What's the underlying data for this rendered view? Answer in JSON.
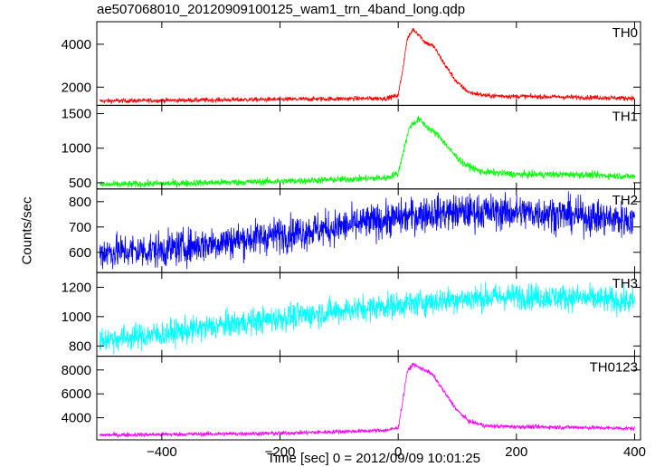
{
  "chart_data": {
    "type": "line",
    "title": "ae507068010_20120909100125_wam1_trn_4band_long.qdp",
    "ylabel": "Counts/sec",
    "xlabel": "Time [sec] 0 = 2012/09/09 10:01:25",
    "xlim": [
      -510,
      410
    ],
    "xticks": [
      -400,
      -200,
      0,
      200,
      400
    ],
    "grid": false,
    "panels": [
      {
        "name": "TH0",
        "color": "#ff0000",
        "ylim": [
          1150,
          5050
        ],
        "yticks": [
          2000,
          4000
        ],
        "noise": 55,
        "profile": [
          [
            -510,
            1350
          ],
          [
            -200,
            1430
          ],
          [
            -20,
            1480
          ],
          [
            0,
            1620
          ],
          [
            8,
            2900
          ],
          [
            15,
            4200
          ],
          [
            25,
            4700
          ],
          [
            35,
            4450
          ],
          [
            45,
            4100
          ],
          [
            60,
            3900
          ],
          [
            80,
            3000
          ],
          [
            100,
            2200
          ],
          [
            120,
            1750
          ],
          [
            150,
            1600
          ],
          [
            200,
            1570
          ],
          [
            300,
            1530
          ],
          [
            400,
            1480
          ]
        ]
      },
      {
        "name": "TH1",
        "color": "#00ff00",
        "ylim": [
          410,
          1620
        ],
        "yticks": [
          500,
          1000,
          1500
        ],
        "noise": 25,
        "profile": [
          [
            -510,
            470
          ],
          [
            -200,
            520
          ],
          [
            -20,
            570
          ],
          [
            0,
            640
          ],
          [
            10,
            1000
          ],
          [
            20,
            1320
          ],
          [
            35,
            1420
          ],
          [
            50,
            1300
          ],
          [
            70,
            1170
          ],
          [
            90,
            950
          ],
          [
            110,
            780
          ],
          [
            140,
            660
          ],
          [
            200,
            620
          ],
          [
            300,
            620
          ],
          [
            400,
            590
          ]
        ]
      },
      {
        "name": "TH2",
        "color": "#0000ff",
        "ylim": [
          520,
          850
        ],
        "yticks": [
          600,
          700,
          800
        ],
        "noise": 35,
        "profile": [
          [
            -510,
            600
          ],
          [
            -400,
            610
          ],
          [
            -300,
            640
          ],
          [
            -200,
            670
          ],
          [
            -100,
            700
          ],
          [
            0,
            735
          ],
          [
            50,
            755
          ],
          [
            150,
            760
          ],
          [
            250,
            755
          ],
          [
            400,
            725
          ]
        ]
      },
      {
        "name": "TH3",
        "color": "#00ffff",
        "ylim": [
          730,
          1300
        ],
        "yticks": [
          800,
          1000,
          1200
        ],
        "noise": 45,
        "profile": [
          [
            -510,
            840
          ],
          [
            -400,
            880
          ],
          [
            -300,
            940
          ],
          [
            -200,
            990
          ],
          [
            -100,
            1040
          ],
          [
            0,
            1080
          ],
          [
            100,
            1120
          ],
          [
            200,
            1140
          ],
          [
            300,
            1130
          ],
          [
            400,
            1100
          ]
        ]
      },
      {
        "name": "TH0123",
        "color": "#ff00ff",
        "ylim": [
          2150,
          9150
        ],
        "yticks": [
          4000,
          6000,
          8000
        ],
        "noise": 90,
        "profile": [
          [
            -510,
            2550
          ],
          [
            -200,
            2700
          ],
          [
            -20,
            2950
          ],
          [
            0,
            3150
          ],
          [
            8,
            5500
          ],
          [
            15,
            7800
          ],
          [
            25,
            8500
          ],
          [
            35,
            8200
          ],
          [
            50,
            7900
          ],
          [
            60,
            7500
          ],
          [
            80,
            6000
          ],
          [
            100,
            4600
          ],
          [
            120,
            3700
          ],
          [
            150,
            3300
          ],
          [
            200,
            3250
          ],
          [
            300,
            3200
          ],
          [
            400,
            3100
          ]
        ]
      }
    ]
  }
}
